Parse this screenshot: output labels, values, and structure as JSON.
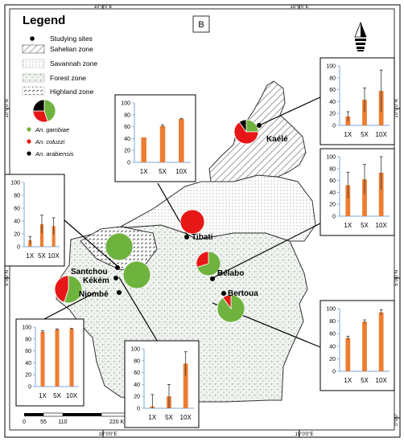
{
  "panel_label": "B",
  "legend": {
    "title": "Legend",
    "items": [
      {
        "label": "Studying sites"
      },
      {
        "label": "Sahelian zone"
      },
      {
        "label": "Savannah zone"
      },
      {
        "label": "Forest zone"
      },
      {
        "label": "Highland zone"
      }
    ],
    "species": [
      {
        "label": "An. gambiae",
        "color": "#6fb33f"
      },
      {
        "label": "An. coluzzi",
        "color": "#e81717"
      },
      {
        "label": "An. arabiensis",
        "color": "#000000"
      }
    ]
  },
  "axis_ticks": {
    "top": [
      "10°0'0\"E",
      "15°0'0\"E"
    ],
    "bottom": [
      "10°0'0\"E",
      "15°0'0\"E"
    ],
    "left": [
      "10°0'0\"N",
      "5°0'0\"N"
    ],
    "right": [
      "10°0'0\"N",
      "5°0'0\"N",
      "0°0'0\""
    ]
  },
  "scale_bar": {
    "labels": [
      "0",
      "55",
      "110",
      "220 Km"
    ]
  },
  "sites": [
    {
      "name": "Kaélé"
    },
    {
      "name": "Tibati"
    },
    {
      "name": "Bélabo"
    },
    {
      "name": "Bertoua"
    },
    {
      "name": "Santchou"
    },
    {
      "name": "Kékém"
    },
    {
      "name": "Njombé"
    }
  ],
  "chart_data": [
    {
      "type": "bar",
      "site": "Kaélé",
      "categories": [
        "1X",
        "5X",
        "10X"
      ],
      "values": [
        15,
        43,
        58
      ],
      "errors": [
        8,
        20,
        35
      ],
      "ylim": [
        0,
        100
      ],
      "yticks": [
        0,
        20,
        40,
        60,
        80,
        100
      ],
      "color": "#ed7d31"
    },
    {
      "type": "bar",
      "site": "Tibati",
      "categories": [
        "1X",
        "5X",
        "10X"
      ],
      "values": [
        42,
        61,
        73
      ],
      "errors": [
        0,
        2,
        1
      ],
      "ylim": [
        0,
        100
      ],
      "yticks": [
        0,
        20,
        40,
        60,
        80,
        100
      ],
      "color": "#ed7d31"
    },
    {
      "type": "bar",
      "site": "Bélabo",
      "categories": [
        "1X",
        "5X",
        "10X"
      ],
      "values": [
        52,
        62,
        73
      ],
      "errors": [
        22,
        25,
        28
      ],
      "ylim": [
        0,
        100
      ],
      "yticks": [
        0,
        20,
        40,
        60,
        80,
        100
      ],
      "color": "#ed7d31"
    },
    {
      "type": "bar",
      "site": "Bertoua",
      "categories": [
        "1X",
        "5X",
        "10X"
      ],
      "values": [
        53,
        79,
        94
      ],
      "errors": [
        3,
        3,
        4
      ],
      "ylim": [
        0,
        100
      ],
      "yticks": [
        0,
        20,
        40,
        60,
        80,
        100
      ],
      "color": "#ed7d31"
    },
    {
      "type": "bar",
      "site": "Santchou",
      "categories": [
        "1X",
        "5X",
        "10X"
      ],
      "values": [
        10,
        35,
        32
      ],
      "errors": [
        6,
        14,
        13
      ],
      "ylim": [
        0,
        100
      ],
      "yticks": [
        0,
        20,
        40,
        60,
        80,
        100
      ],
      "color": "#ed7d31"
    },
    {
      "type": "bar",
      "site": "Kékém",
      "categories": [
        "1X",
        "5X",
        "10X"
      ],
      "values": [
        3,
        20,
        75
      ],
      "errors": [
        20,
        20,
        20
      ],
      "ylim": [
        0,
        100
      ],
      "yticks": [
        0,
        20,
        40,
        60,
        80,
        100
      ],
      "color": "#ed7d31"
    },
    {
      "type": "bar",
      "site": "Njombé",
      "categories": [
        "1X",
        "5X",
        "10X"
      ],
      "values": [
        92,
        96,
        97
      ],
      "errors": [
        2,
        1,
        1
      ],
      "ylim": [
        0,
        100
      ],
      "yticks": [
        0,
        20,
        40,
        60,
        80,
        100
      ],
      "color": "#ed7d31"
    },
    {
      "type": "pie",
      "site": "Kaélé",
      "labels": [
        "An. gambiae",
        "An. coluzzi",
        "An. arabiensis"
      ],
      "values": [
        25,
        65,
        10
      ]
    },
    {
      "type": "pie",
      "site": "Tibati",
      "labels": [
        "An. gambiae",
        "An. coluzzi",
        "An. arabiensis"
      ],
      "values": [
        0,
        100,
        0
      ]
    },
    {
      "type": "pie",
      "site": "Bélabo",
      "labels": [
        "An. gambiae",
        "An. coluzzi",
        "An. arabiensis"
      ],
      "values": [
        70,
        30,
        0
      ]
    },
    {
      "type": "pie",
      "site": "Bertoua",
      "labels": [
        "An. gambiae",
        "An. coluzzi",
        "An. arabiensis"
      ],
      "values": [
        90,
        10,
        0
      ]
    },
    {
      "type": "pie",
      "site": "Santchou (upper)",
      "labels": [
        "An. gambiae",
        "An. coluzzi",
        "An. arabiensis"
      ],
      "values": [
        100,
        0,
        0
      ]
    },
    {
      "type": "pie",
      "site": "Kékém",
      "labels": [
        "An. gambiae",
        "An. coluzzi",
        "An. arabiensis"
      ],
      "values": [
        100,
        0,
        0
      ]
    },
    {
      "type": "pie",
      "site": "Njombé",
      "labels": [
        "An. gambiae",
        "An. coluzzi",
        "An. arabiensis"
      ],
      "values": [
        55,
        45,
        0
      ]
    },
    {
      "type": "pie",
      "site": "Legend",
      "labels": [
        "An. gambiae",
        "An. coluzzi",
        "An. arabiensis"
      ],
      "values": [
        45,
        30,
        25
      ]
    }
  ]
}
